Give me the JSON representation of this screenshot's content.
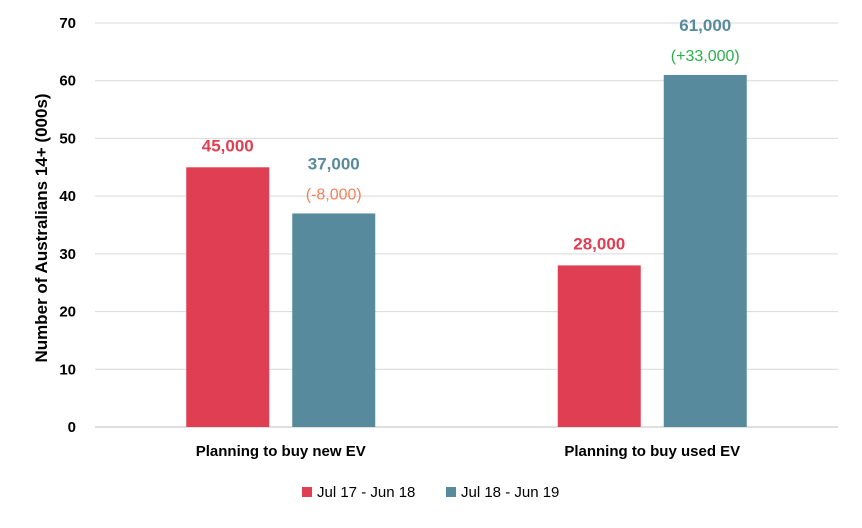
{
  "chart_data": {
    "type": "bar",
    "title": "",
    "xlabel": "",
    "ylabel": "Number of Australians 14+ (000s)",
    "categories": [
      "Planning to buy new EV",
      "Planning to buy used EV"
    ],
    "series": [
      {
        "name": "Jul 17 - Jun 18",
        "color": "#E03E52",
        "values": [
          45,
          28
        ],
        "value_labels": [
          "45,000",
          "28,000"
        ],
        "change_labels": [
          "",
          ""
        ]
      },
      {
        "name": "Jul 18 - Jun 19",
        "color": "#578A9D",
        "values": [
          37,
          61
        ],
        "value_labels": [
          "37,000",
          "61,000"
        ],
        "change_labels": [
          "(-8,000)",
          "(+33,000)"
        ],
        "change_colors": [
          "#F2825A",
          "#2BB04A"
        ]
      }
    ],
    "ylim": [
      0,
      70
    ],
    "yticks": [
      0,
      10,
      20,
      30,
      40,
      50,
      60,
      70
    ],
    "grid": true,
    "legend": "bottom"
  }
}
